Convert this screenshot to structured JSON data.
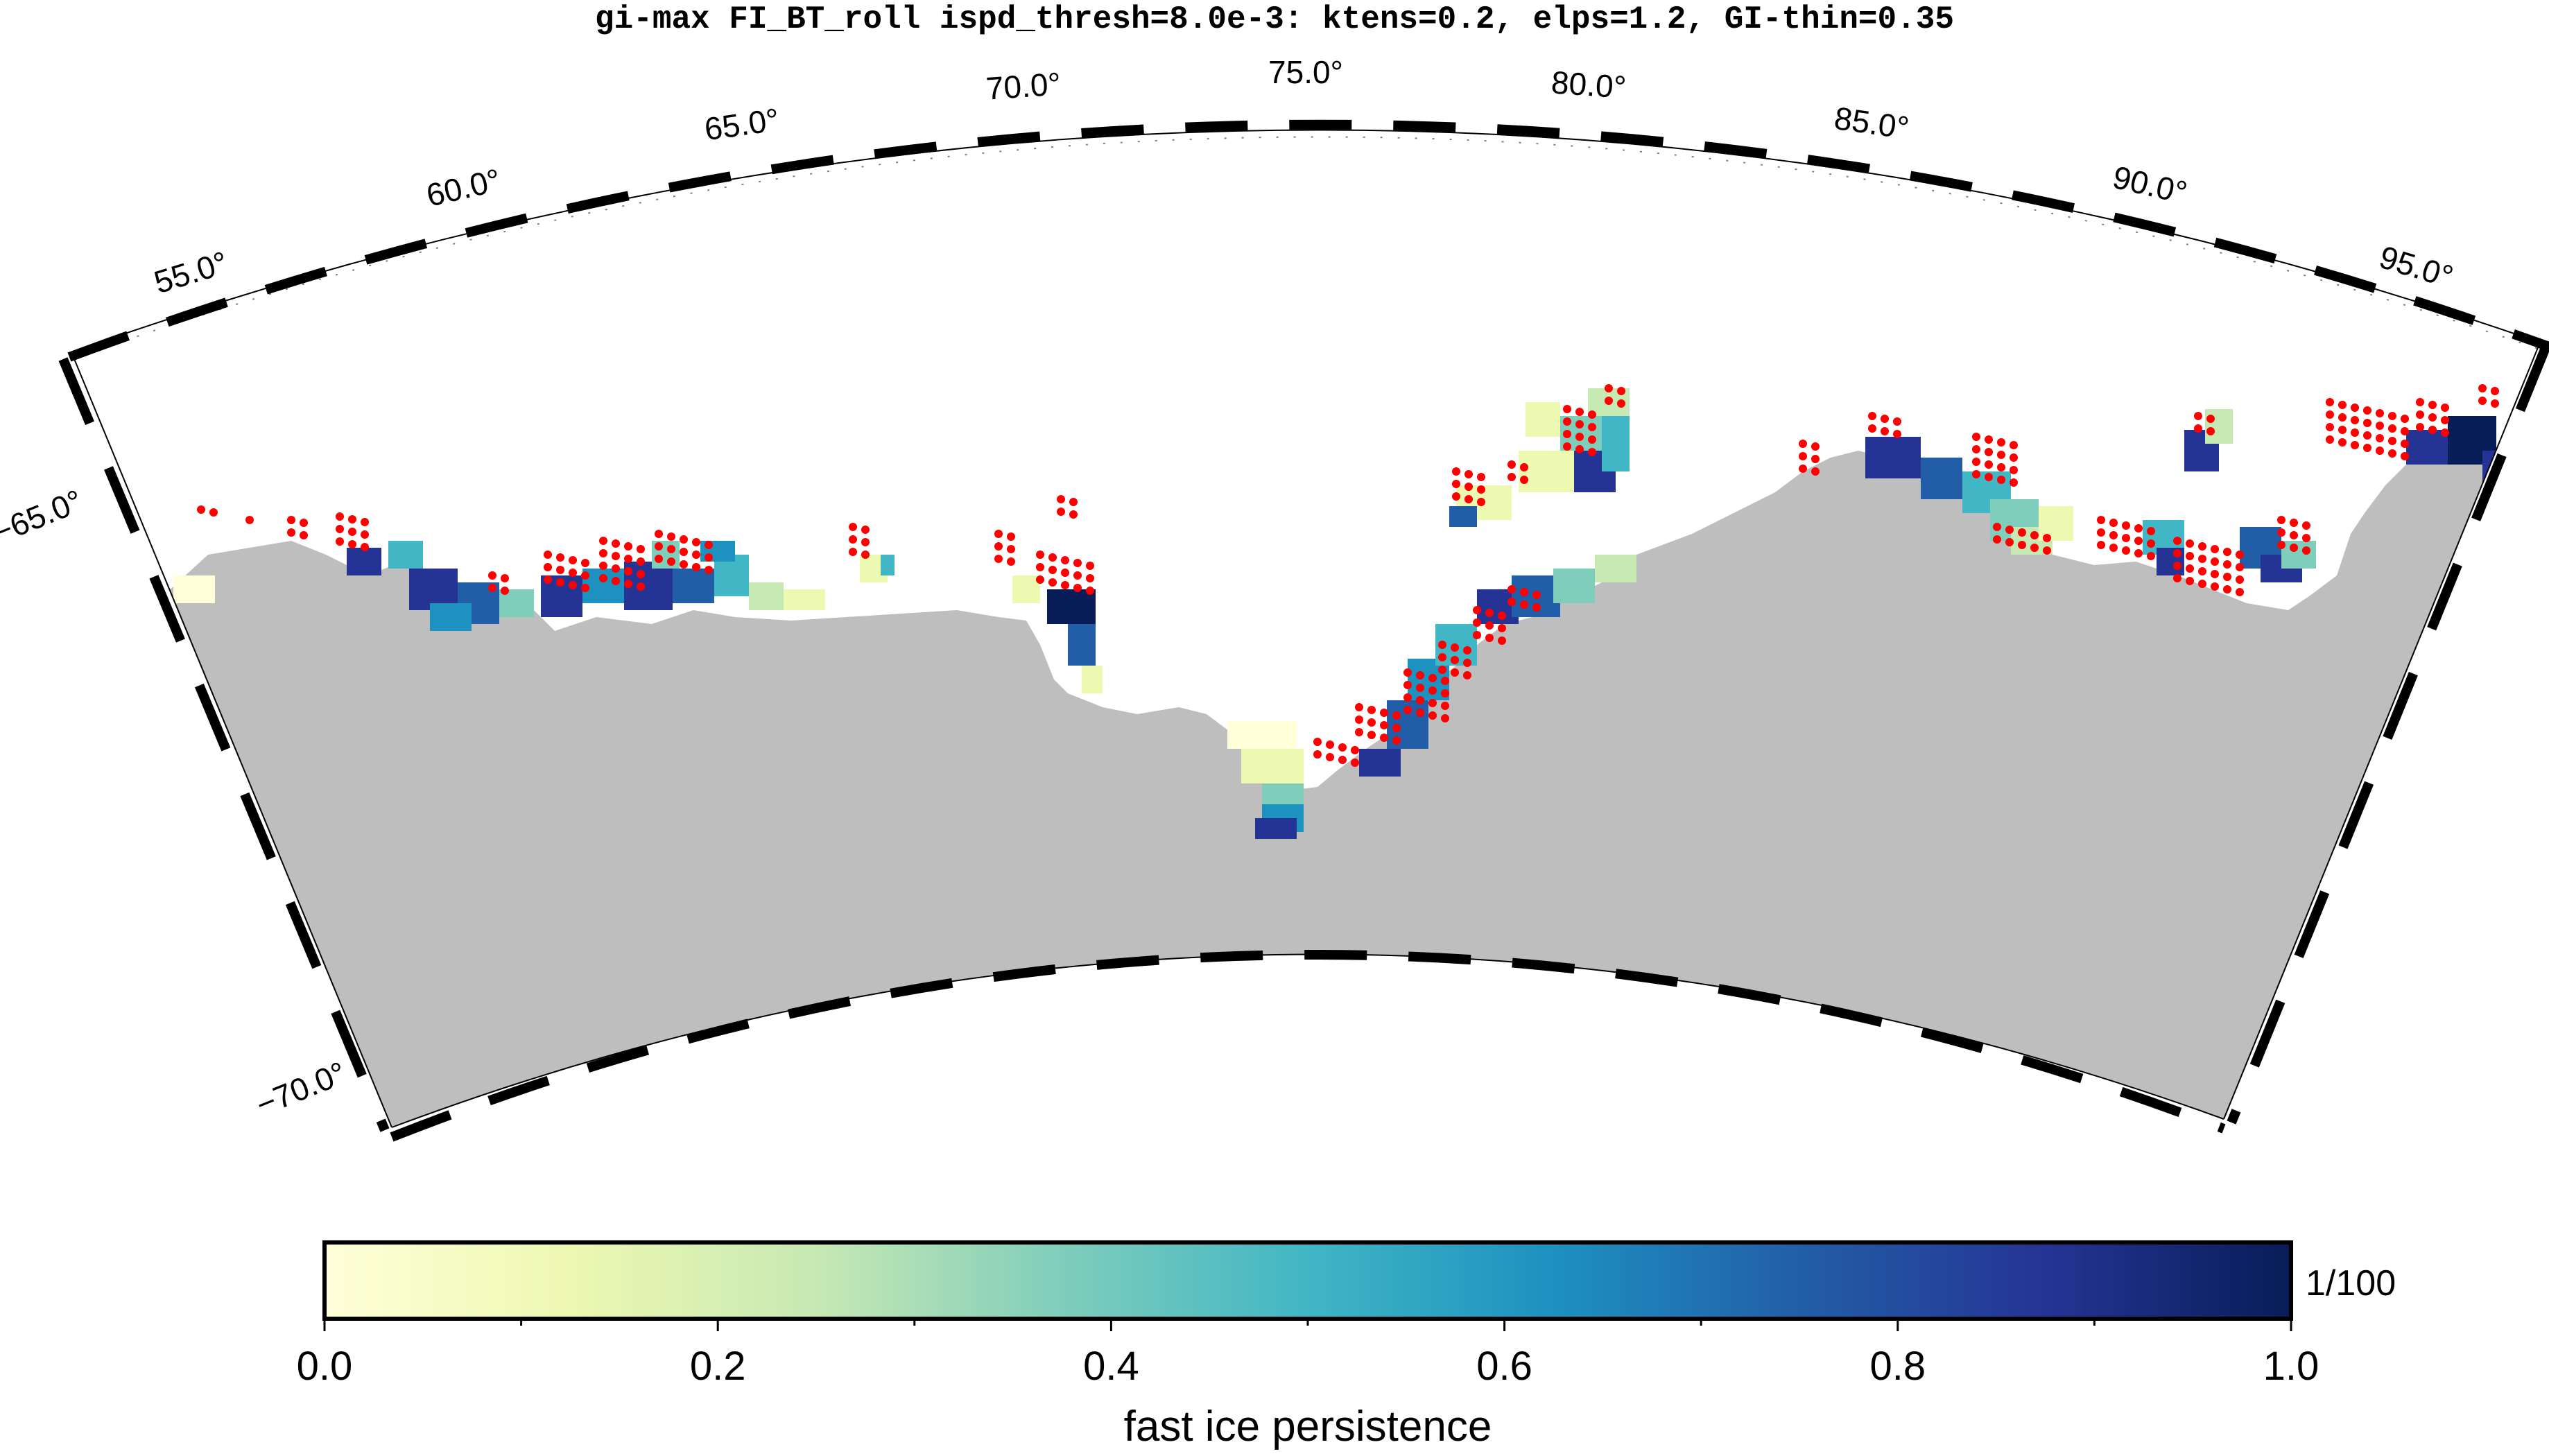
{
  "title": "gi-max FI_BT_roll ispd_thresh=8.0e-3: ktens=0.2, elps=1.2, GI-thin=0.35",
  "map": {
    "lon_labels": [
      "55.0°",
      "60.0°",
      "65.0°",
      "70.0°",
      "75.0°",
      "80.0°",
      "85.0°",
      "90.0°",
      "95.0°"
    ],
    "lat_labels": [
      "−65.0°",
      "−70.0°"
    ],
    "colors": {
      "land": "#bebebe",
      "ocean": "#ffffff",
      "marker": "#ff0000",
      "frame": "#000000"
    }
  },
  "colorbar": {
    "label": "fast ice persistence",
    "unit_note": "1/100",
    "tick_labels": [
      "0.0",
      "0.2",
      "0.4",
      "0.6",
      "0.8",
      "1.0"
    ],
    "range": [
      0.0,
      1.0
    ],
    "colormap": [
      "#ffffd9",
      "#edf8b1",
      "#c7e9b4",
      "#7fcdbb",
      "#41b6c4",
      "#1d91c0",
      "#225ea8",
      "#253494",
      "#081d58"
    ]
  }
}
